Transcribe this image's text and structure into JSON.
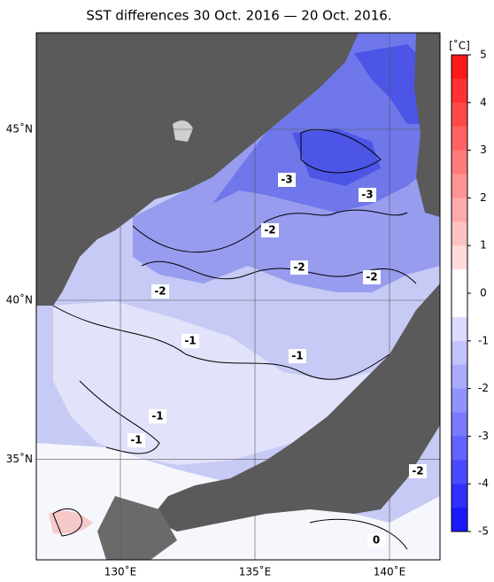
{
  "title": "SST differences 30 Oct. 2016 — 20 Oct. 2016.",
  "map": {
    "lon_ticks": [
      {
        "value": 130,
        "label": "130˚E"
      },
      {
        "value": 135,
        "label": "135˚E"
      },
      {
        "value": 140,
        "label": "140˚E"
      }
    ],
    "lat_ticks": [
      {
        "value": 45,
        "label": "45˚N"
      },
      {
        "value": 40,
        "label": "40˚N"
      },
      {
        "value": 35,
        "label": "35˚N"
      }
    ],
    "contour_labels": [
      -3,
      -3,
      -2,
      -2,
      -2,
      -2,
      -2,
      -1,
      -1,
      -1,
      -1,
      0
    ]
  },
  "colorbar": {
    "unit": "[˚C]",
    "ticks": [
      5,
      4,
      3,
      2,
      1,
      0,
      -1,
      -2,
      -3,
      -4,
      -5
    ]
  }
}
